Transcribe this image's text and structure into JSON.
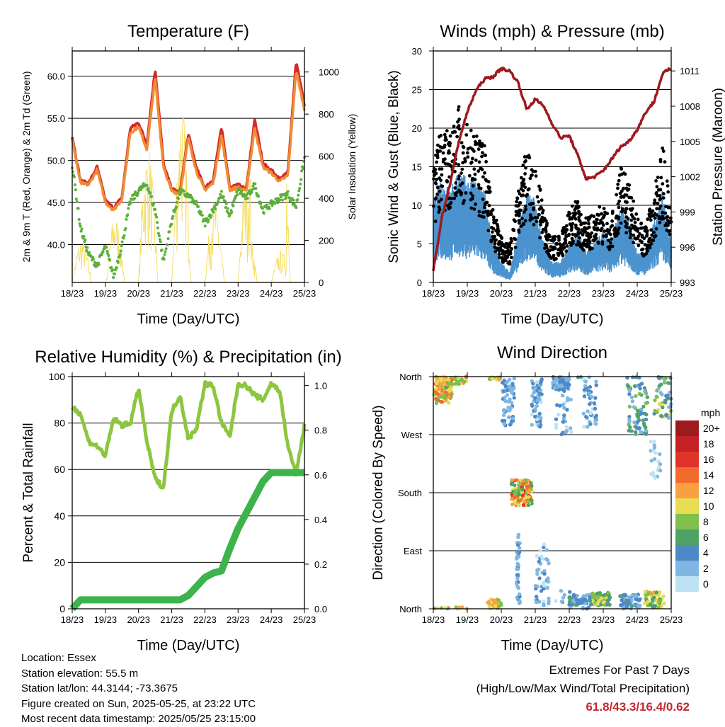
{
  "chart_data": [
    {
      "type": "line",
      "title": "Temperature (F)",
      "xlabel": "Time (Day/UTC)",
      "ylabel": "2m & 9m T (Red, Orange) & 2m Td (Green)",
      "ylabel_right": "Solar Insolation (Yellow)",
      "x_ticks": [
        "18/23",
        "19/23",
        "20/23",
        "21/23",
        "22/23",
        "23/23",
        "24/23",
        "25/23"
      ],
      "ylim": [
        35.5,
        63
      ],
      "y_ticks": [
        "40.0",
        "45.0",
        "50.0",
        "55.0",
        "60.0"
      ],
      "y_tick_values": [
        40,
        45,
        50,
        55,
        60
      ],
      "y2lim": [
        0,
        1100
      ],
      "y2_ticks": [
        "0",
        "200",
        "400",
        "600",
        "800",
        "1000"
      ],
      "y2_tick_values": [
        0,
        200,
        400,
        600,
        800,
        1000
      ],
      "x_days": [
        0,
        0.25,
        0.5,
        0.75,
        1,
        1.25,
        1.5,
        1.75,
        2,
        2.25,
        2.5,
        2.75,
        3,
        3.25,
        3.5,
        3.75,
        4,
        4.25,
        4.5,
        4.75,
        5,
        5.25,
        5.5,
        5.75,
        6,
        6.25,
        6.5,
        6.75,
        7
      ],
      "series": [
        {
          "color": "#d42a2a",
          "axis": "left",
          "values": [
            52.8,
            47.5,
            47.3,
            49.2,
            45.2,
            44.3,
            45.6,
            53.8,
            54.5,
            51.8,
            60.8,
            49.5,
            46.6,
            46.2,
            53.1,
            49.0,
            46.7,
            47.7,
            53.8,
            46.8,
            47.1,
            46.5,
            54.8,
            49.6,
            48.8,
            47.8,
            48.5,
            61.8,
            56.5
          ]
        },
        {
          "color": "#f08b35",
          "axis": "left",
          "values": [
            52.5,
            47.3,
            47.1,
            48.9,
            45.0,
            44.1,
            45.4,
            53.3,
            54.0,
            51.3,
            59.8,
            49.1,
            46.4,
            46.0,
            52.7,
            48.6,
            46.5,
            47.3,
            53.0,
            46.5,
            46.8,
            46.3,
            53.9,
            49.2,
            48.5,
            47.5,
            48.2,
            60.7,
            56.0
          ]
        },
        {
          "color": "#5cb039",
          "axis": "left",
          "values": [
            49.5,
            42.0,
            38.8,
            37.5,
            39.8,
            36.2,
            40.0,
            45.1,
            46.4,
            47.2,
            44.1,
            38.0,
            42.9,
            46.3,
            45.8,
            44.7,
            42.5,
            44.1,
            46.0,
            43.4,
            46.5,
            45.5,
            47.1,
            44.0,
            44.8,
            45.5,
            46.0,
            44.5,
            50.3
          ]
        }
      ],
      "insolation": {
        "color": "#f4dc5a",
        "peaks": [
          210,
          120,
          320,
          760,
          650,
          790,
          880,
          400,
          380,
          560,
          250,
          150,
          1050
        ]
      }
    },
    {
      "type": "scatter",
      "title": "Winds (mph) & Pressure (mb)",
      "xlabel": "Time (Day/UTC)",
      "ylabel": "Sonic Wind & Gust (Blue, Black)",
      "ylabel_right": "Station Pressure (Maroon)",
      "x_ticks": [
        "18/23",
        "19/23",
        "20/23",
        "21/23",
        "22/23",
        "23/23",
        "24/23",
        "25/23"
      ],
      "ylim": [
        0,
        30
      ],
      "y_ticks": [
        "0",
        "5",
        "10",
        "15",
        "20",
        "25",
        "30"
      ],
      "y_tick_values": [
        0,
        5,
        10,
        15,
        20,
        25,
        30
      ],
      "y2lim": [
        993,
        1012.7
      ],
      "y2_ticks": [
        "993",
        "996",
        "999",
        "1002",
        "1005",
        "1008",
        "1011"
      ],
      "y2_tick_values": [
        993,
        996,
        999,
        1002,
        1005,
        1008,
        1011
      ],
      "x_days": [
        0,
        0.25,
        0.5,
        0.75,
        1,
        1.25,
        1.5,
        1.75,
        2,
        2.25,
        2.5,
        2.75,
        3,
        3.25,
        3.5,
        3.75,
        4,
        4.25,
        4.5,
        4.75,
        5,
        5.25,
        5.5,
        5.75,
        6,
        6.25,
        6.5,
        6.75,
        7
      ],
      "wind": [
        8,
        10,
        9,
        11,
        10,
        10,
        9,
        4,
        2,
        1,
        5,
        9,
        8,
        4,
        2,
        2,
        4,
        5,
        3,
        4,
        5,
        4,
        8,
        6,
        3,
        3,
        6,
        9,
        4
      ],
      "gust": [
        13,
        17,
        16,
        19,
        17,
        16,
        15,
        8,
        5,
        4,
        10,
        15,
        13,
        8,
        5,
        5,
        8,
        9,
        7,
        8,
        9,
        7,
        13,
        11,
        7,
        6,
        10,
        15,
        8
      ],
      "pressure": [
        994,
        998.5,
        1001.5,
        1005,
        1007.5,
        1009.3,
        1010.3,
        1010.5,
        1011.2,
        1011,
        1010,
        1007.7,
        1008.6,
        1008,
        1006.5,
        1005.3,
        1005.5,
        1003.8,
        1001.8,
        1002,
        1002.5,
        1003.5,
        1004.5,
        1005,
        1006,
        1007.5,
        1008.4,
        1010.8,
        1011.2
      ],
      "series_colors": {
        "wind": "#4b93cf",
        "gust": "#000000",
        "pressure": "#9e1a1f"
      }
    },
    {
      "type": "line",
      "title": "Relative Humidity (%) & Precipitation (in)",
      "xlabel": "Time (Day/UTC)",
      "ylabel": "Percent & Total Rainfall",
      "x_ticks": [
        "18/23",
        "19/23",
        "20/23",
        "21/23",
        "22/23",
        "23/23",
        "24/23",
        "25/23"
      ],
      "ylim": [
        0,
        100
      ],
      "y_ticks": [
        "0",
        "20",
        "40",
        "60",
        "80",
        "100"
      ],
      "y_tick_values": [
        0,
        20,
        40,
        60,
        80,
        100
      ],
      "y2lim": [
        0,
        1.04
      ],
      "y2_ticks": [
        "0.0",
        "0.2",
        "0.4",
        "0.6",
        "0.8",
        "1.0"
      ],
      "y2_tick_values": [
        0,
        0.2,
        0.4,
        0.6,
        0.8,
        1.0
      ],
      "x_days": [
        0,
        0.25,
        0.5,
        0.75,
        1,
        1.25,
        1.5,
        1.75,
        2,
        2.25,
        2.5,
        2.75,
        3,
        3.25,
        3.5,
        3.75,
        4,
        4.25,
        4.5,
        4.75,
        5,
        5.25,
        5.5,
        5.75,
        6,
        6.25,
        6.5,
        6.75,
        7
      ],
      "humidity": [
        87,
        84,
        72,
        70,
        66,
        82,
        79,
        80,
        95,
        72,
        56,
        52,
        85,
        92,
        73,
        78,
        97,
        96,
        80,
        74,
        97,
        96,
        92,
        90,
        97,
        94,
        70,
        58,
        79
      ],
      "precip": [
        0,
        0.04,
        0.04,
        0.04,
        0.04,
        0.04,
        0.04,
        0.04,
        0.04,
        0.04,
        0.04,
        0.04,
        0.04,
        0.04,
        0.06,
        0.1,
        0.14,
        0.16,
        0.17,
        0.27,
        0.36,
        0.43,
        0.5,
        0.57,
        0.61,
        0.61,
        0.61,
        0.61,
        0.61
      ],
      "series_colors": {
        "humidity": "#8cc63f",
        "precip": "#3cb44b"
      }
    },
    {
      "type": "scatter",
      "title": "Wind Direction",
      "xlabel": "Time (Day/UTC)",
      "ylabel": "Direction (Colored By Speed)",
      "x_ticks": [
        "18/23",
        "19/23",
        "20/23",
        "21/23",
        "22/23",
        "23/23",
        "24/23",
        "25/23"
      ],
      "y_ticks": [
        "North",
        "East",
        "South",
        "West",
        "North"
      ],
      "y_tick_values": [
        0,
        90,
        180,
        270,
        360
      ],
      "ylim": [
        0,
        360
      ],
      "colorbar_title": "mph",
      "colorbar_labels": [
        "20+",
        "18",
        "16",
        "14",
        "12",
        "10",
        "8",
        "6",
        "4",
        "2",
        "0"
      ],
      "colorbar_colors": [
        "#9b1b1e",
        "#c42026",
        "#e0342a",
        "#f26b2c",
        "#f9a141",
        "#e8dc50",
        "#7fbf4a",
        "#4ea266",
        "#4e89c7",
        "#7fb6e2",
        "#bfe1f5"
      ]
    }
  ],
  "footer": {
    "location": "Location: Essex",
    "elevation": "Station elevation: 55.5 m",
    "latlon": "Station lat/lon: 44.3144; -73.3675",
    "created": "Figure created on Sun, 2025-05-25, at 23:22 UTC",
    "timestamp": "Most recent data timestamp: 2025/05/25 23:15:00"
  },
  "extremes": {
    "title": "Extremes For Past 7 Days",
    "subtitle": "(High/Low/Max Wind/Total Precipitation)",
    "values": "61.8/43.3/16.4/0.62"
  }
}
